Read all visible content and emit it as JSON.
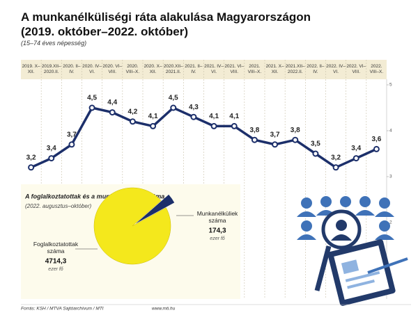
{
  "chart_data": [
    {
      "type": "line",
      "title": "A munkanélküliségi ráta alakulása Magyarországon (2019. október–2022. október)",
      "subtitle": "(15–74 éves népesség)",
      "categories": [
        "2019. X–XII.",
        "2019.XII– 2020.II.",
        "2020. II–IV.",
        "2020. IV–VI.",
        "2020. VI–VIII.",
        "2020. VIII–X.",
        "2020. X–XII.",
        "2020.XII– 2021.II.",
        "2021. II–IV.",
        "2021. IV–VI.",
        "2021. VI–VIII.",
        "2021. VIII–X.",
        "2021. X–XII.",
        "2021.XII– 2022.II.",
        "2022. II–IV.",
        "2022. IV–VI.",
        "2022. VI–VIII.",
        "2022. VIII–X."
      ],
      "values": [
        3.2,
        3.4,
        3.7,
        4.5,
        4.4,
        4.2,
        4.1,
        4.5,
        4.3,
        4.1,
        4.1,
        3.8,
        3.7,
        3.8,
        3.5,
        3.2,
        3.4,
        3.6
      ],
      "value_labels": [
        "3,2",
        "3,4",
        "3,7",
        "4,5",
        "4,4",
        "4,2",
        "4,1",
        "4,5",
        "4,3",
        "4,1",
        "4,1",
        "3,8",
        "3,7",
        "3,8",
        "3,5",
        "3,2",
        "3,4",
        "3,6"
      ],
      "color": "#1c2f6a",
      "ylim": [
        1.5,
        5.1
      ],
      "yticks": [
        2,
        3,
        4,
        5
      ],
      "grid": true
    },
    {
      "type": "pie",
      "title": "A foglalkoztatottak és a munkanélküliek száma",
      "subtitle": "(2022. augusztus–október)",
      "unit": "ezer fő",
      "categories": [
        "Foglalkoztatottak száma",
        "Munkanélküliek száma"
      ],
      "values": [
        4714.3,
        174.3
      ],
      "value_labels": [
        "4714,3",
        "174,3"
      ],
      "colors": [
        "#f4e81c",
        "#1c2f6a"
      ]
    }
  ],
  "source": "Forrás: KSH / MTVA Sajtóarchívum / MTI",
  "website": "www.mti.hu"
}
